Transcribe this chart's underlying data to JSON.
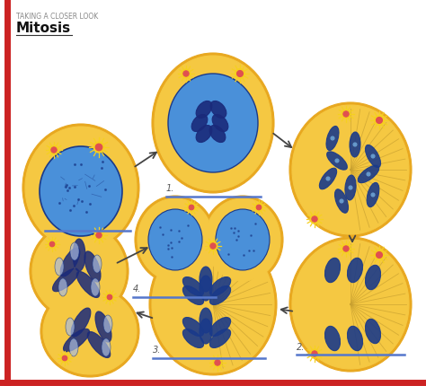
{
  "title_small": "TAKING A CLOSER LOOK",
  "title_large": "Mitosis",
  "bg": "#ffffff",
  "border_color": "#cc2222",
  "cell_gold_outer": "#e8a820",
  "cell_gold_inner": "#f5c842",
  "nucleus_blue": "#4a90d9",
  "nucleus_dark": "#1a3a8a",
  "chrom_dark": "#1a2a7a",
  "arrow_color": "#444444",
  "blue_line_color": "#5577cc",
  "sun_color": "#f5d020",
  "spindle_color": "#c8a030",
  "label_color": "#555555"
}
